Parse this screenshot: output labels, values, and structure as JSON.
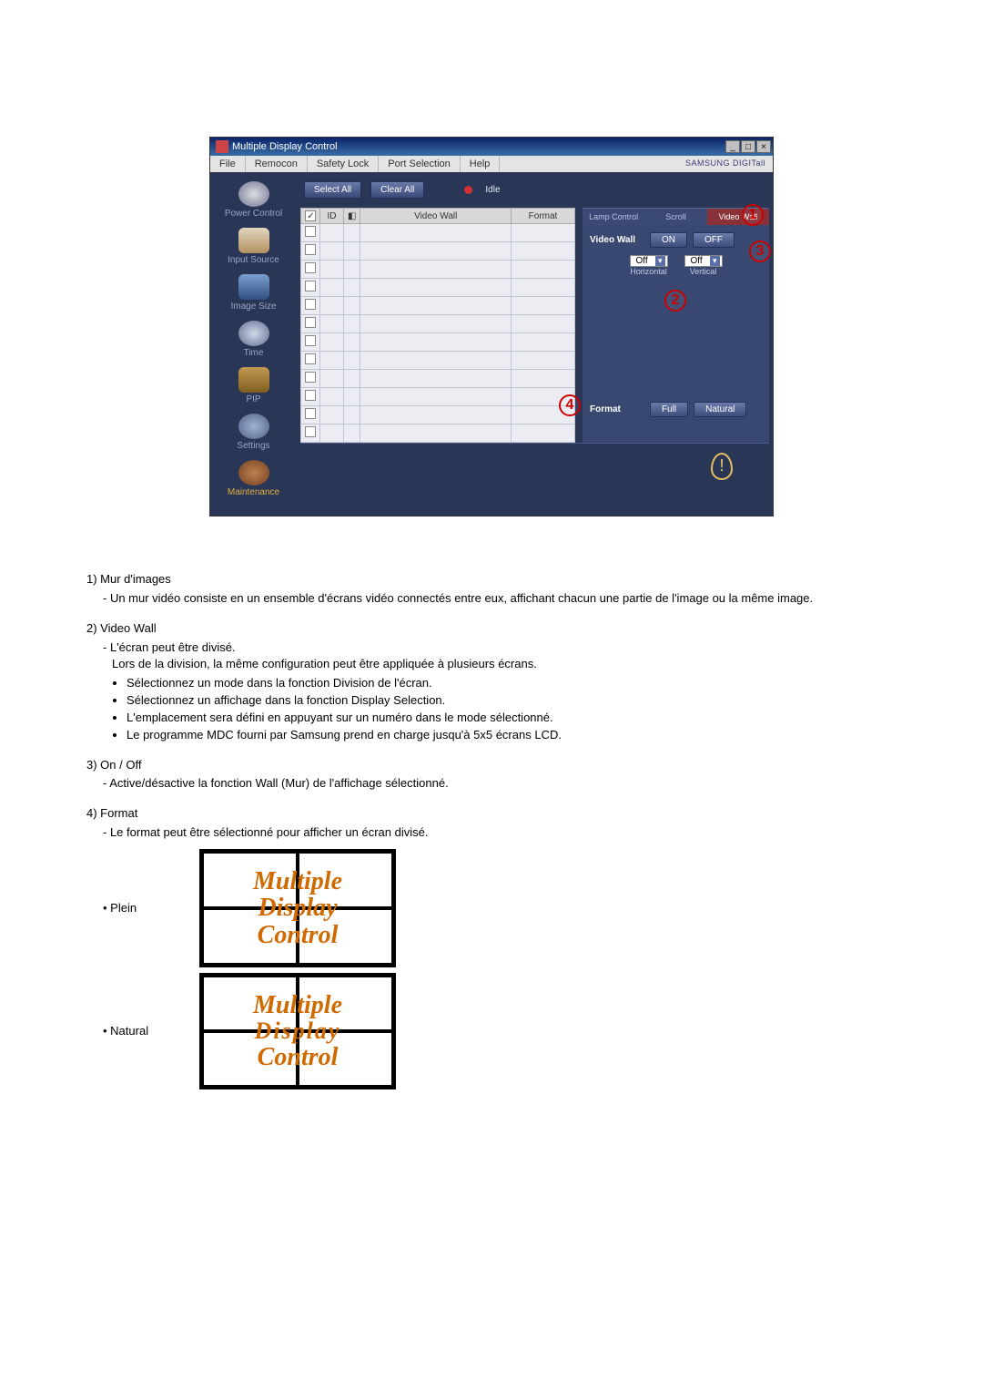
{
  "window": {
    "title": "Multiple Display Control",
    "menu": [
      "File",
      "Remocon",
      "Safety Lock",
      "Port Selection",
      "Help"
    ],
    "brand": "SAMSUNG DIGITall"
  },
  "sidebar": {
    "items": [
      {
        "label": "Power Control",
        "icon": "power"
      },
      {
        "label": "Input Source",
        "icon": "input"
      },
      {
        "label": "Image Size",
        "icon": "imgsize"
      },
      {
        "label": "Time",
        "icon": "time"
      },
      {
        "label": "PIP",
        "icon": "pip"
      },
      {
        "label": "Settings",
        "icon": "settings"
      },
      {
        "label": "Maintenance",
        "icon": "maint",
        "active": true
      }
    ]
  },
  "toolbar": {
    "select_all": "Select All",
    "clear_all": "Clear All",
    "idle": "Idle"
  },
  "table": {
    "columns": {
      "id": "ID",
      "video_wall": "Video Wall",
      "format": "Format"
    },
    "row_count": 12,
    "first_checked": true
  },
  "config": {
    "tabs": {
      "lamp": "Lamp Control",
      "scroll": "Scroll",
      "video_wall": "Video Wall"
    },
    "video_wall_label": "Video Wall",
    "on": "ON",
    "off": "OFF",
    "horizontal": {
      "label": "Horizontal",
      "value": "Off"
    },
    "vertical": {
      "label": "Vertical",
      "value": "Off"
    },
    "format_label": "Format",
    "full": "Full",
    "natural": "Natural"
  },
  "callouts": {
    "c1": "1",
    "c2": "2",
    "c3": "3",
    "c4": "4"
  },
  "text": {
    "item1": {
      "head": "1)  Mur d'images",
      "body": "Un mur vidéo consiste en un ensemble d'écrans vidéo connectés entre eux, affichant chacun une partie de l'image ou la même image."
    },
    "item2": {
      "head": "2)  Video Wall",
      "body": "L'écran peut être divisé.",
      "body2": "Lors de la division, la même configuration peut être appliquée à plusieurs écrans.",
      "bullets": [
        "Sélectionnez un mode dans la fonction Division de l'écran.",
        "Sélectionnez un affichage dans la fonction Display Selection.",
        "L'emplacement sera défini en appuyant sur un numéro dans le mode sélectionné.",
        "Le programme MDC fourni par Samsung prend en charge jusqu'à 5x5 écrans LCD."
      ]
    },
    "item3": {
      "head": "3)  On / Off",
      "body": "Active/désactive la fonction Wall (Mur) de l'affichage sélectionné."
    },
    "item4": {
      "head": "4)  Format",
      "body": "Le format peut être sélectionné pour afficher un écran divisé.",
      "fmt_plein": "Plein",
      "fmt_natural": "Natural",
      "fig_lines": [
        "Multiple",
        "Display",
        "Control"
      ]
    }
  },
  "style": {
    "badge_color": "#c00",
    "fig_text_color": "#d06a00"
  }
}
